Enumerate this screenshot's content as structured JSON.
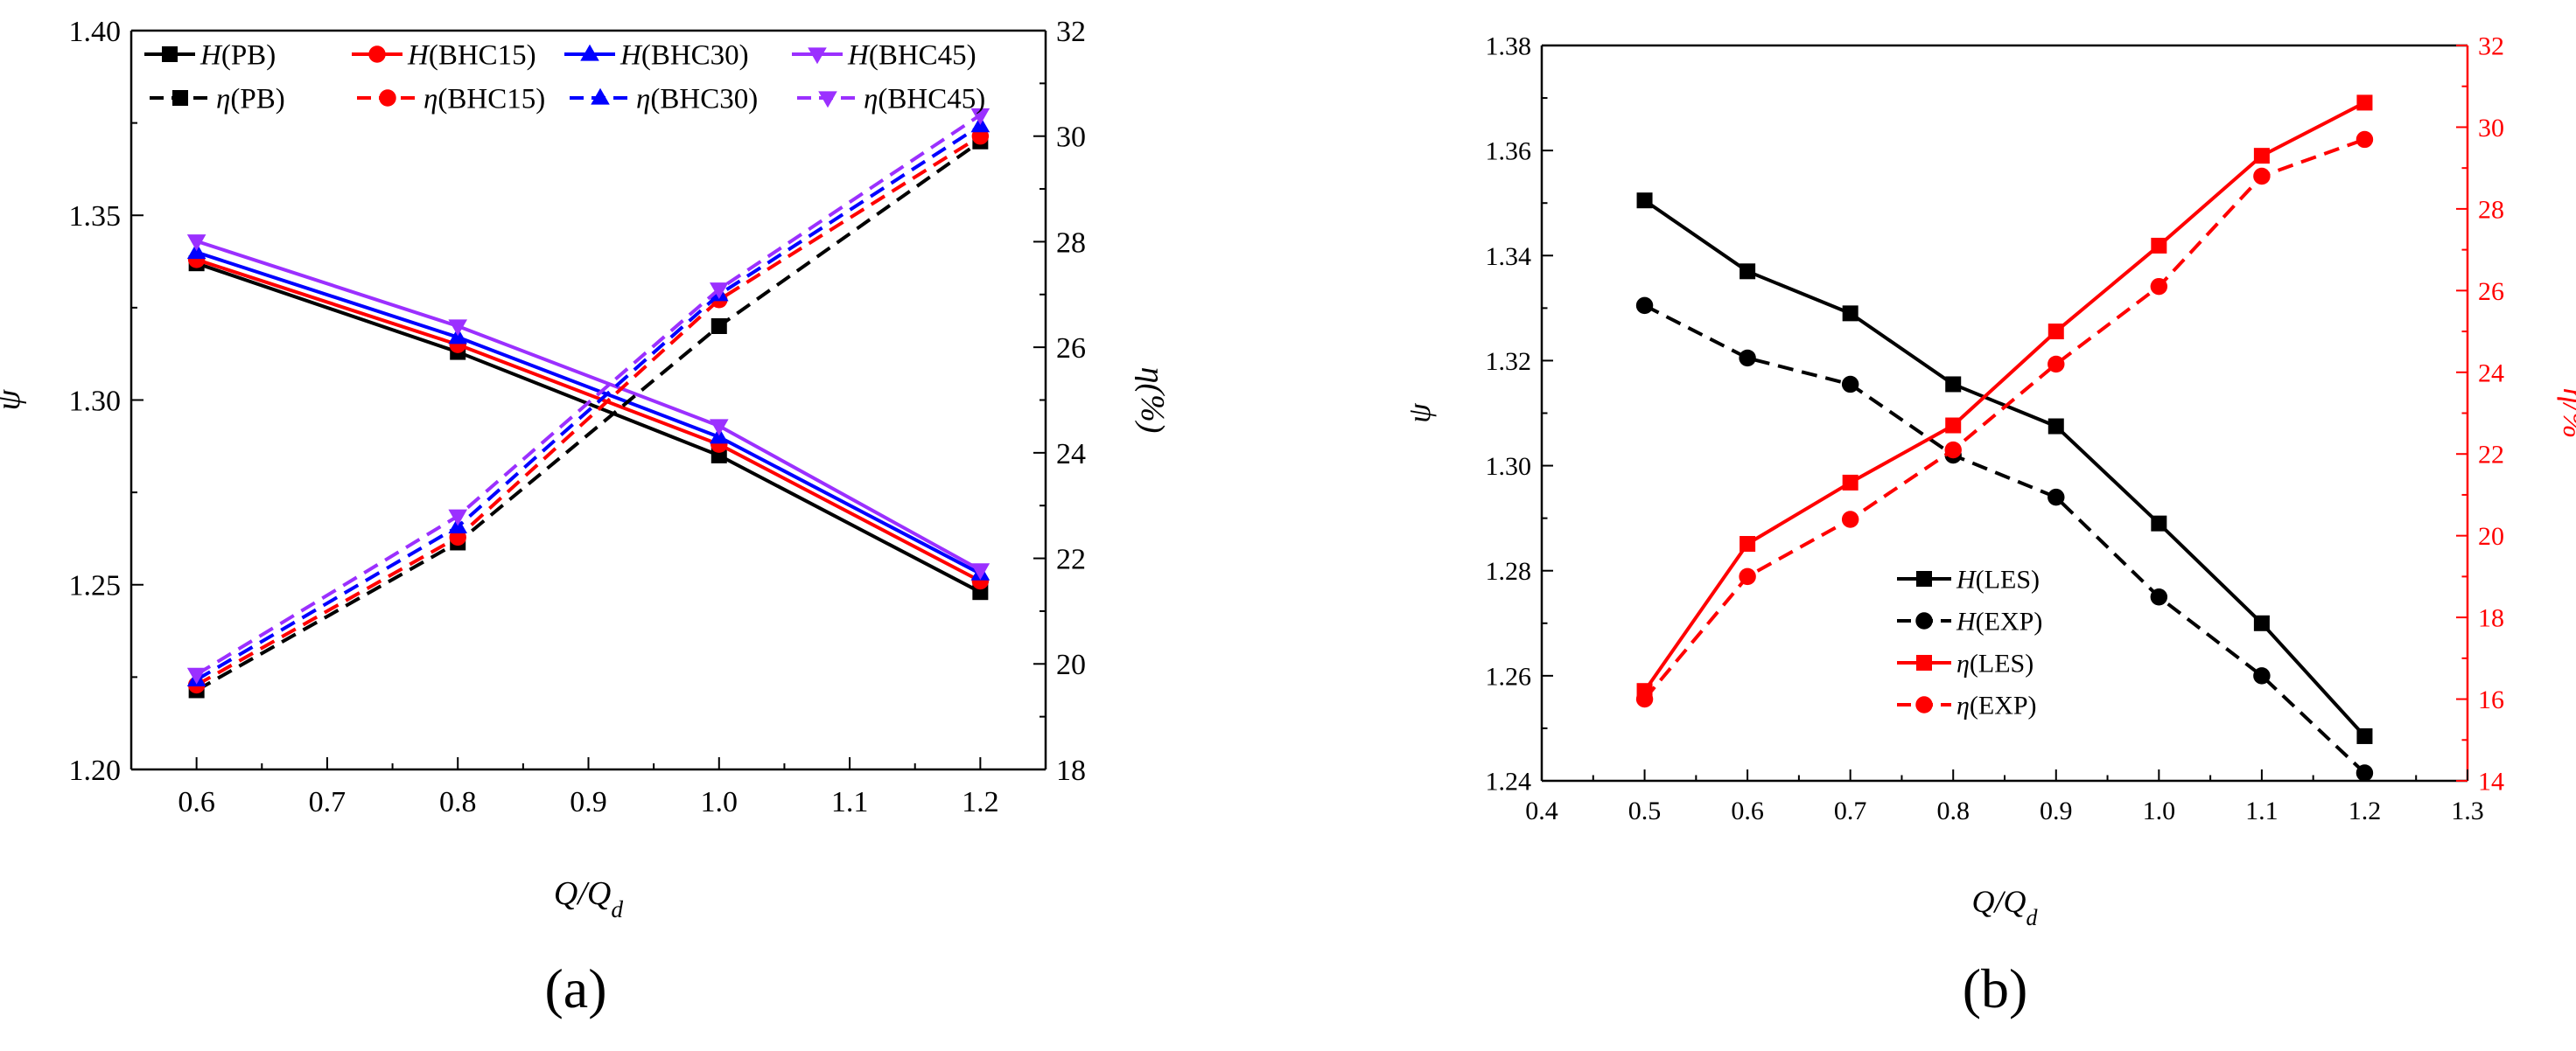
{
  "panel_labels": {
    "a": "(a)",
    "b": "(b)"
  },
  "chart_data": [
    {
      "id": "a",
      "type": "line",
      "xlabel": {
        "main": "Q/Q",
        "sub": "d"
      },
      "ylabel_left": "ψ",
      "ylabel_right": "η(%)",
      "xlim": [
        0.55,
        1.25
      ],
      "ylim_left": [
        1.2,
        1.4
      ],
      "ylim_right": [
        18,
        32
      ],
      "x_ticks": [
        0.6,
        0.7,
        0.8,
        0.9,
        1.0,
        1.1,
        1.2
      ],
      "x_tick_labels": [
        "0.6",
        "0.7",
        "0.8",
        "0.9",
        "1.0",
        "1.1",
        "1.2"
      ],
      "y_left_ticks": [
        1.2,
        1.25,
        1.3,
        1.35,
        1.4
      ],
      "y_left_tick_labels": [
        "1.20",
        "1.25",
        "1.30",
        "1.35",
        "1.40"
      ],
      "y_right_ticks": [
        18,
        20,
        22,
        24,
        26,
        28,
        30,
        32
      ],
      "y_right_tick_labels": [
        "18",
        "20",
        "22",
        "24",
        "26",
        "28",
        "30",
        "32"
      ],
      "x": [
        0.6,
        0.8,
        1.0,
        1.2
      ],
      "legend_position": "top",
      "series": [
        {
          "name": "H(PB)",
          "symbol": "H",
          "case": "(PB)",
          "axis": "left",
          "dashed": false,
          "marker": "square",
          "color": "#000000",
          "values": [
            1.337,
            1.313,
            1.285,
            1.248
          ]
        },
        {
          "name": "H(BHC15)",
          "symbol": "H",
          "case": "(BHC15)",
          "axis": "left",
          "dashed": false,
          "marker": "circle",
          "color": "#ff0000",
          "values": [
            1.338,
            1.315,
            1.288,
            1.251
          ]
        },
        {
          "name": "H(BHC30)",
          "symbol": "H",
          "case": "(BHC30)",
          "axis": "left",
          "dashed": false,
          "marker": "triangle-up",
          "color": "#0000ff",
          "values": [
            1.34,
            1.317,
            1.29,
            1.253
          ]
        },
        {
          "name": "H(BHC45)",
          "symbol": "H",
          "case": "(BHC45)",
          "axis": "left",
          "dashed": false,
          "marker": "triangle-down",
          "color": "#9b30ff",
          "values": [
            1.343,
            1.32,
            1.293,
            1.254
          ]
        },
        {
          "name": "η(PB)",
          "symbol": "η",
          "case": "(PB)",
          "axis": "right",
          "dashed": true,
          "marker": "square",
          "color": "#000000",
          "values": [
            19.5,
            22.3,
            26.4,
            29.9
          ]
        },
        {
          "name": "η(BHC15)",
          "symbol": "η",
          "case": "(BHC15)",
          "axis": "right",
          "dashed": true,
          "marker": "circle",
          "color": "#ff0000",
          "values": [
            19.6,
            22.4,
            26.9,
            30.0
          ]
        },
        {
          "name": "η(BHC30)",
          "symbol": "η",
          "case": "(BHC30)",
          "axis": "right",
          "dashed": true,
          "marker": "triangle-up",
          "color": "#0000ff",
          "values": [
            19.7,
            22.6,
            27.0,
            30.2
          ]
        },
        {
          "name": "η(BHC45)",
          "symbol": "η",
          "case": "(BHC45)",
          "axis": "right",
          "dashed": true,
          "marker": "triangle-down",
          "color": "#9b30ff",
          "values": [
            19.8,
            22.8,
            27.1,
            30.4
          ]
        }
      ]
    },
    {
      "id": "b",
      "type": "line",
      "xlabel": {
        "main": "Q/Q",
        "sub": "d"
      },
      "ylabel_left": "ψ",
      "ylabel_right": "η/%",
      "right_axis_color": "#ff0000",
      "xlim": [
        0.4,
        1.3
      ],
      "ylim_left": [
        1.24,
        1.38
      ],
      "ylim_right": [
        14,
        32
      ],
      "x_ticks": [
        0.4,
        0.5,
        0.6,
        0.7,
        0.8,
        0.9,
        1.0,
        1.1,
        1.2,
        1.3
      ],
      "x_tick_labels": [
        "0.4",
        "0.5",
        "0.6",
        "0.7",
        "0.8",
        "0.9",
        "1.0",
        "1.1",
        "1.2",
        "1.3"
      ],
      "y_left_ticks": [
        1.24,
        1.26,
        1.28,
        1.3,
        1.32,
        1.34,
        1.36,
        1.38
      ],
      "y_left_tick_labels": [
        "1.24",
        "1.26",
        "1.28",
        "1.30",
        "1.32",
        "1.34",
        "1.36",
        "1.38"
      ],
      "y_right_ticks": [
        14,
        16,
        18,
        20,
        22,
        24,
        26,
        28,
        30,
        32
      ],
      "y_right_tick_labels": [
        "14",
        "16",
        "18",
        "20",
        "22",
        "24",
        "26",
        "28",
        "30",
        "32"
      ],
      "x": [
        0.5,
        0.6,
        0.7,
        0.8,
        0.9,
        1.0,
        1.1,
        1.2
      ],
      "legend_position": "lower-center",
      "series": [
        {
          "name": "H(LES)",
          "symbol": "H",
          "case": "(LES)",
          "axis": "left",
          "dashed": false,
          "marker": "square",
          "color": "#000000",
          "values": [
            1.3505,
            1.337,
            1.329,
            1.3155,
            1.3075,
            1.289,
            1.27,
            1.2485
          ]
        },
        {
          "name": "H(EXP)",
          "symbol": "H",
          "case": "(EXP)",
          "axis": "left",
          "dashed": true,
          "marker": "circle",
          "color": "#000000",
          "values": [
            1.3305,
            1.3205,
            1.3155,
            1.302,
            1.294,
            1.275,
            1.26,
            1.2415
          ]
        },
        {
          "name": "η(LES)",
          "symbol": "η",
          "case": "(LES)",
          "axis": "right",
          "dashed": false,
          "marker": "square",
          "color": "#ff0000",
          "values": [
            16.2,
            19.8,
            21.3,
            22.7,
            25.0,
            27.1,
            29.3,
            30.6
          ]
        },
        {
          "name": "η(EXP)",
          "symbol": "η",
          "case": "(EXP)",
          "axis": "right",
          "dashed": true,
          "marker": "circle",
          "color": "#ff0000",
          "values": [
            16.0,
            19.0,
            20.4,
            22.1,
            24.2,
            26.1,
            28.8,
            29.7
          ]
        }
      ]
    }
  ]
}
